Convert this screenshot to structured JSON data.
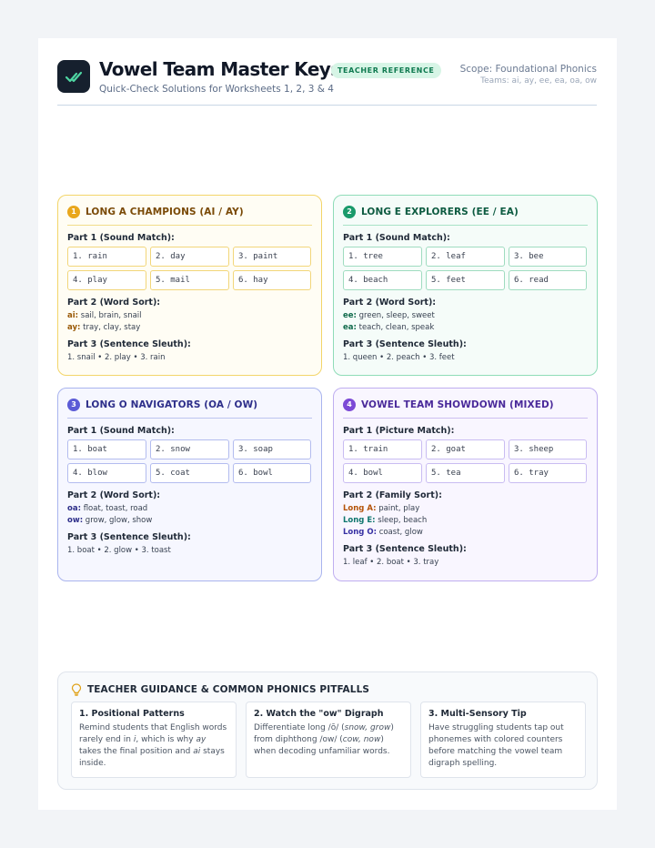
{
  "header": {
    "title": "Vowel Team Master Keys",
    "badge": "TEACHER REFERENCE",
    "subtitle": "Quick-Check Solutions for Worksheets 1, 2, 3 & 4",
    "scope": "Scope: Foundational Phonics",
    "teams": "Teams: ai, ay, ee, ea, oa, ow",
    "logo_icon": "double-check-icon"
  },
  "colors": {
    "long_a": "#e9a71c",
    "long_e": "#1a9a6b",
    "long_o": "#5b5bd6",
    "mixed": "#7c4ad6"
  },
  "cards": [
    {
      "num": "1",
      "title": "LONG A CHAMPIONS (AI / AY)",
      "part1_title": "Part 1 (Sound Match):",
      "cells": [
        "1. rain",
        "2. day",
        "3. paint",
        "4. play",
        "5. mail",
        "6. hay"
      ],
      "part2_title": "Part 2 (Word Sort):",
      "sort": [
        {
          "key": "ai:",
          "value": "sail, brain, snail"
        },
        {
          "key": "ay:",
          "value": "tray, clay, stay"
        }
      ],
      "part3_title": "Part 3 (Sentence Sleuth):",
      "sleuth": "1. snail • 2. play • 3. rain"
    },
    {
      "num": "2",
      "title": "LONG E EXPLORERS (EE / EA)",
      "part1_title": "Part 1 (Sound Match):",
      "cells": [
        "1. tree",
        "2. leaf",
        "3. bee",
        "4. beach",
        "5. feet",
        "6. read"
      ],
      "part2_title": "Part 2 (Word Sort):",
      "sort": [
        {
          "key": "ee:",
          "value": "green, sleep, sweet"
        },
        {
          "key": "ea:",
          "value": "teach, clean, speak"
        }
      ],
      "part3_title": "Part 3 (Sentence Sleuth):",
      "sleuth": "1. queen • 2. peach • 3. feet"
    },
    {
      "num": "3",
      "title": "LONG O NAVIGATORS (OA / OW)",
      "part1_title": "Part 1 (Sound Match):",
      "cells": [
        "1. boat",
        "2. snow",
        "3. soap",
        "4. blow",
        "5. coat",
        "6. bowl"
      ],
      "part2_title": "Part 2 (Word Sort):",
      "sort": [
        {
          "key": "oa:",
          "value": "float, toast, road"
        },
        {
          "key": "ow:",
          "value": "grow, glow, show"
        }
      ],
      "part3_title": "Part 3 (Sentence Sleuth):",
      "sleuth": "1. boat • 2. glow • 3. toast"
    },
    {
      "num": "4",
      "title": "VOWEL TEAM SHOWDOWN (MIXED)",
      "part1_title": "Part 1 (Picture Match):",
      "cells": [
        "1. train",
        "2. goat",
        "3. sheep",
        "4. bowl",
        "5. tea",
        "6. tray"
      ],
      "part2_title": "Part 2 (Family Sort):",
      "sort": [
        {
          "key": "Long A:",
          "value": "paint, play"
        },
        {
          "key": "Long E:",
          "value": "sleep, beach"
        },
        {
          "key": "Long O:",
          "value": "coast, glow"
        }
      ],
      "part3_title": "Part 3 (Sentence Sleuth):",
      "sleuth": "1. leaf • 2. boat • 3. tray"
    }
  ],
  "guidance": {
    "title": "TEACHER GUIDANCE & COMMON PHONICS PITFALLS",
    "icon": "lightbulb-icon",
    "tips": [
      {
        "title": "1. Positional Patterns",
        "body_parts": [
          "Remind students that English words rarely end in ",
          "i",
          ", which is why ",
          "ay",
          " takes the final position and ",
          "ai",
          " stays inside."
        ]
      },
      {
        "title": "2. Watch the \"ow\" Digraph",
        "body_parts": [
          "Differentiate long /ō/ (",
          "snow, grow",
          ") from diphthong /ow/ (",
          "cow, now",
          ") when decoding unfamiliar words."
        ]
      },
      {
        "title": "3. Multi-Sensory Tip",
        "body_parts": [
          "Have struggling students tap out phonemes with colored counters before matching the vowel team digraph spelling."
        ]
      }
    ]
  }
}
